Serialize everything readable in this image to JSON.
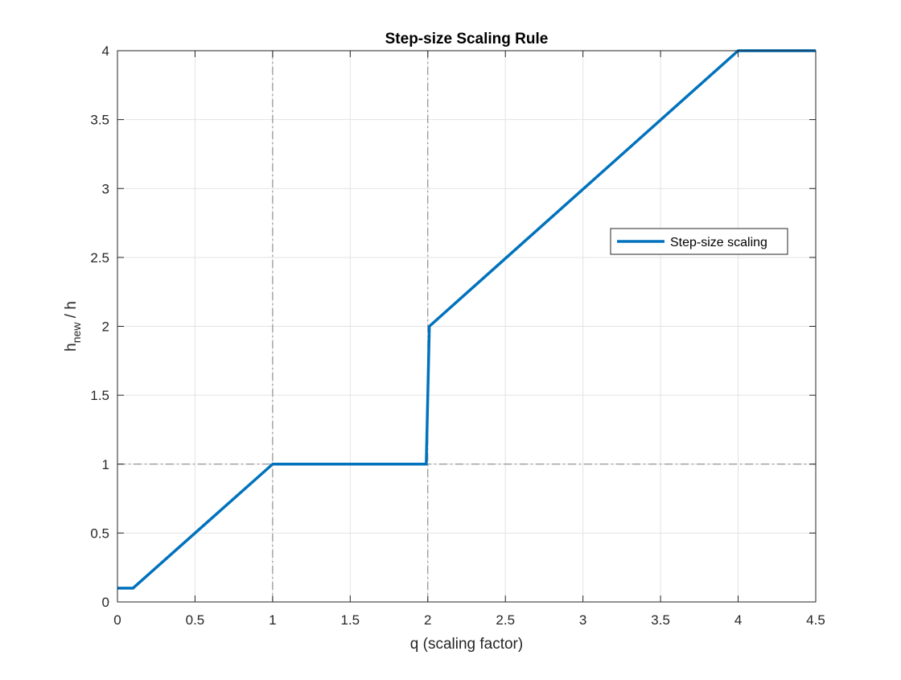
{
  "chart_data": {
    "type": "line",
    "title": "Step-size Scaling Rule",
    "xlabel": "q (scaling factor)",
    "ylabel": {
      "base": "h",
      "subscript": "new",
      "suffix": " / h"
    },
    "xlim": [
      0,
      4.5
    ],
    "ylim": [
      0,
      4
    ],
    "xticks": [
      0,
      0.5,
      1,
      1.5,
      2,
      2.5,
      3,
      3.5,
      4,
      4.5
    ],
    "xtick_labels": [
      "0",
      "0.5",
      "1",
      "1.5",
      "2",
      "2.5",
      "3",
      "3.5",
      "4",
      "4.5"
    ],
    "yticks": [
      0,
      0.5,
      1,
      1.5,
      2,
      2.5,
      3,
      3.5,
      4
    ],
    "ytick_labels": [
      "0",
      "0.5",
      "1",
      "1.5",
      "2",
      "2.5",
      "3",
      "3.5",
      "4"
    ],
    "grid": true,
    "legend_position": "right",
    "series": [
      {
        "name": "Step-size scaling",
        "color": "#0072BD",
        "x": [
          0,
          0.1,
          1,
          1.99,
          2.01,
          4,
          4.5
        ],
        "y": [
          0.1,
          0.1,
          1,
          1,
          2,
          4,
          4
        ]
      }
    ],
    "reference_lines": [
      {
        "orientation": "vertical",
        "value": 1,
        "style": "dash-dot",
        "color": "#7f7f7f"
      },
      {
        "orientation": "vertical",
        "value": 2,
        "style": "dash-dot",
        "color": "#7f7f7f"
      },
      {
        "orientation": "horizontal",
        "value": 1,
        "style": "dash-dot",
        "color": "#7f7f7f"
      }
    ]
  }
}
